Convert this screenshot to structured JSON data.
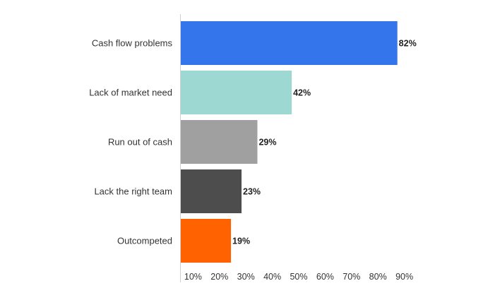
{
  "chart_data": {
    "type": "bar",
    "orientation": "horizontal",
    "categories": [
      "Cash flow problems",
      "Lack of market need",
      "Run out of cash",
      "Lack the right team",
      "Outcompeted"
    ],
    "values": [
      82,
      42,
      29,
      23,
      19
    ],
    "value_labels": [
      "82%",
      "42%",
      "29%",
      "23%",
      "19%"
    ],
    "bar_colors": [
      "#3575EC",
      "#9DD9D2",
      "#A0A0A0",
      "#4D4D4D",
      "#FF6200"
    ],
    "x_ticks": [
      10,
      20,
      30,
      40,
      50,
      60,
      70,
      80,
      90
    ],
    "x_tick_labels": [
      "10%",
      "20%",
      "30%",
      "40%",
      "50%",
      "60%",
      "70%",
      "80%",
      "90%"
    ],
    "xlim": [
      0,
      90
    ],
    "grid": false,
    "title": "",
    "xlabel": "",
    "ylabel": ""
  }
}
